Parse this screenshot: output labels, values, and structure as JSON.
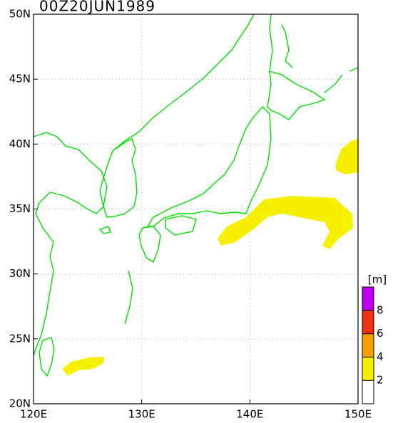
{
  "map": {
    "title": "00Z20JUN1989",
    "x_tick_labels": [
      "120E",
      "130E",
      "140E",
      "150E"
    ],
    "y_tick_labels": [
      "20N",
      "25N",
      "30N",
      "35N",
      "40N",
      "45N",
      "50N"
    ],
    "colorbar": {
      "unit": "[m]",
      "labels": [
        "2",
        "4",
        "6",
        "8"
      ],
      "colors": [
        "#ffffff",
        "#f5f000",
        "#f5a000",
        "#f03010",
        "#c000f0"
      ]
    }
  }
}
